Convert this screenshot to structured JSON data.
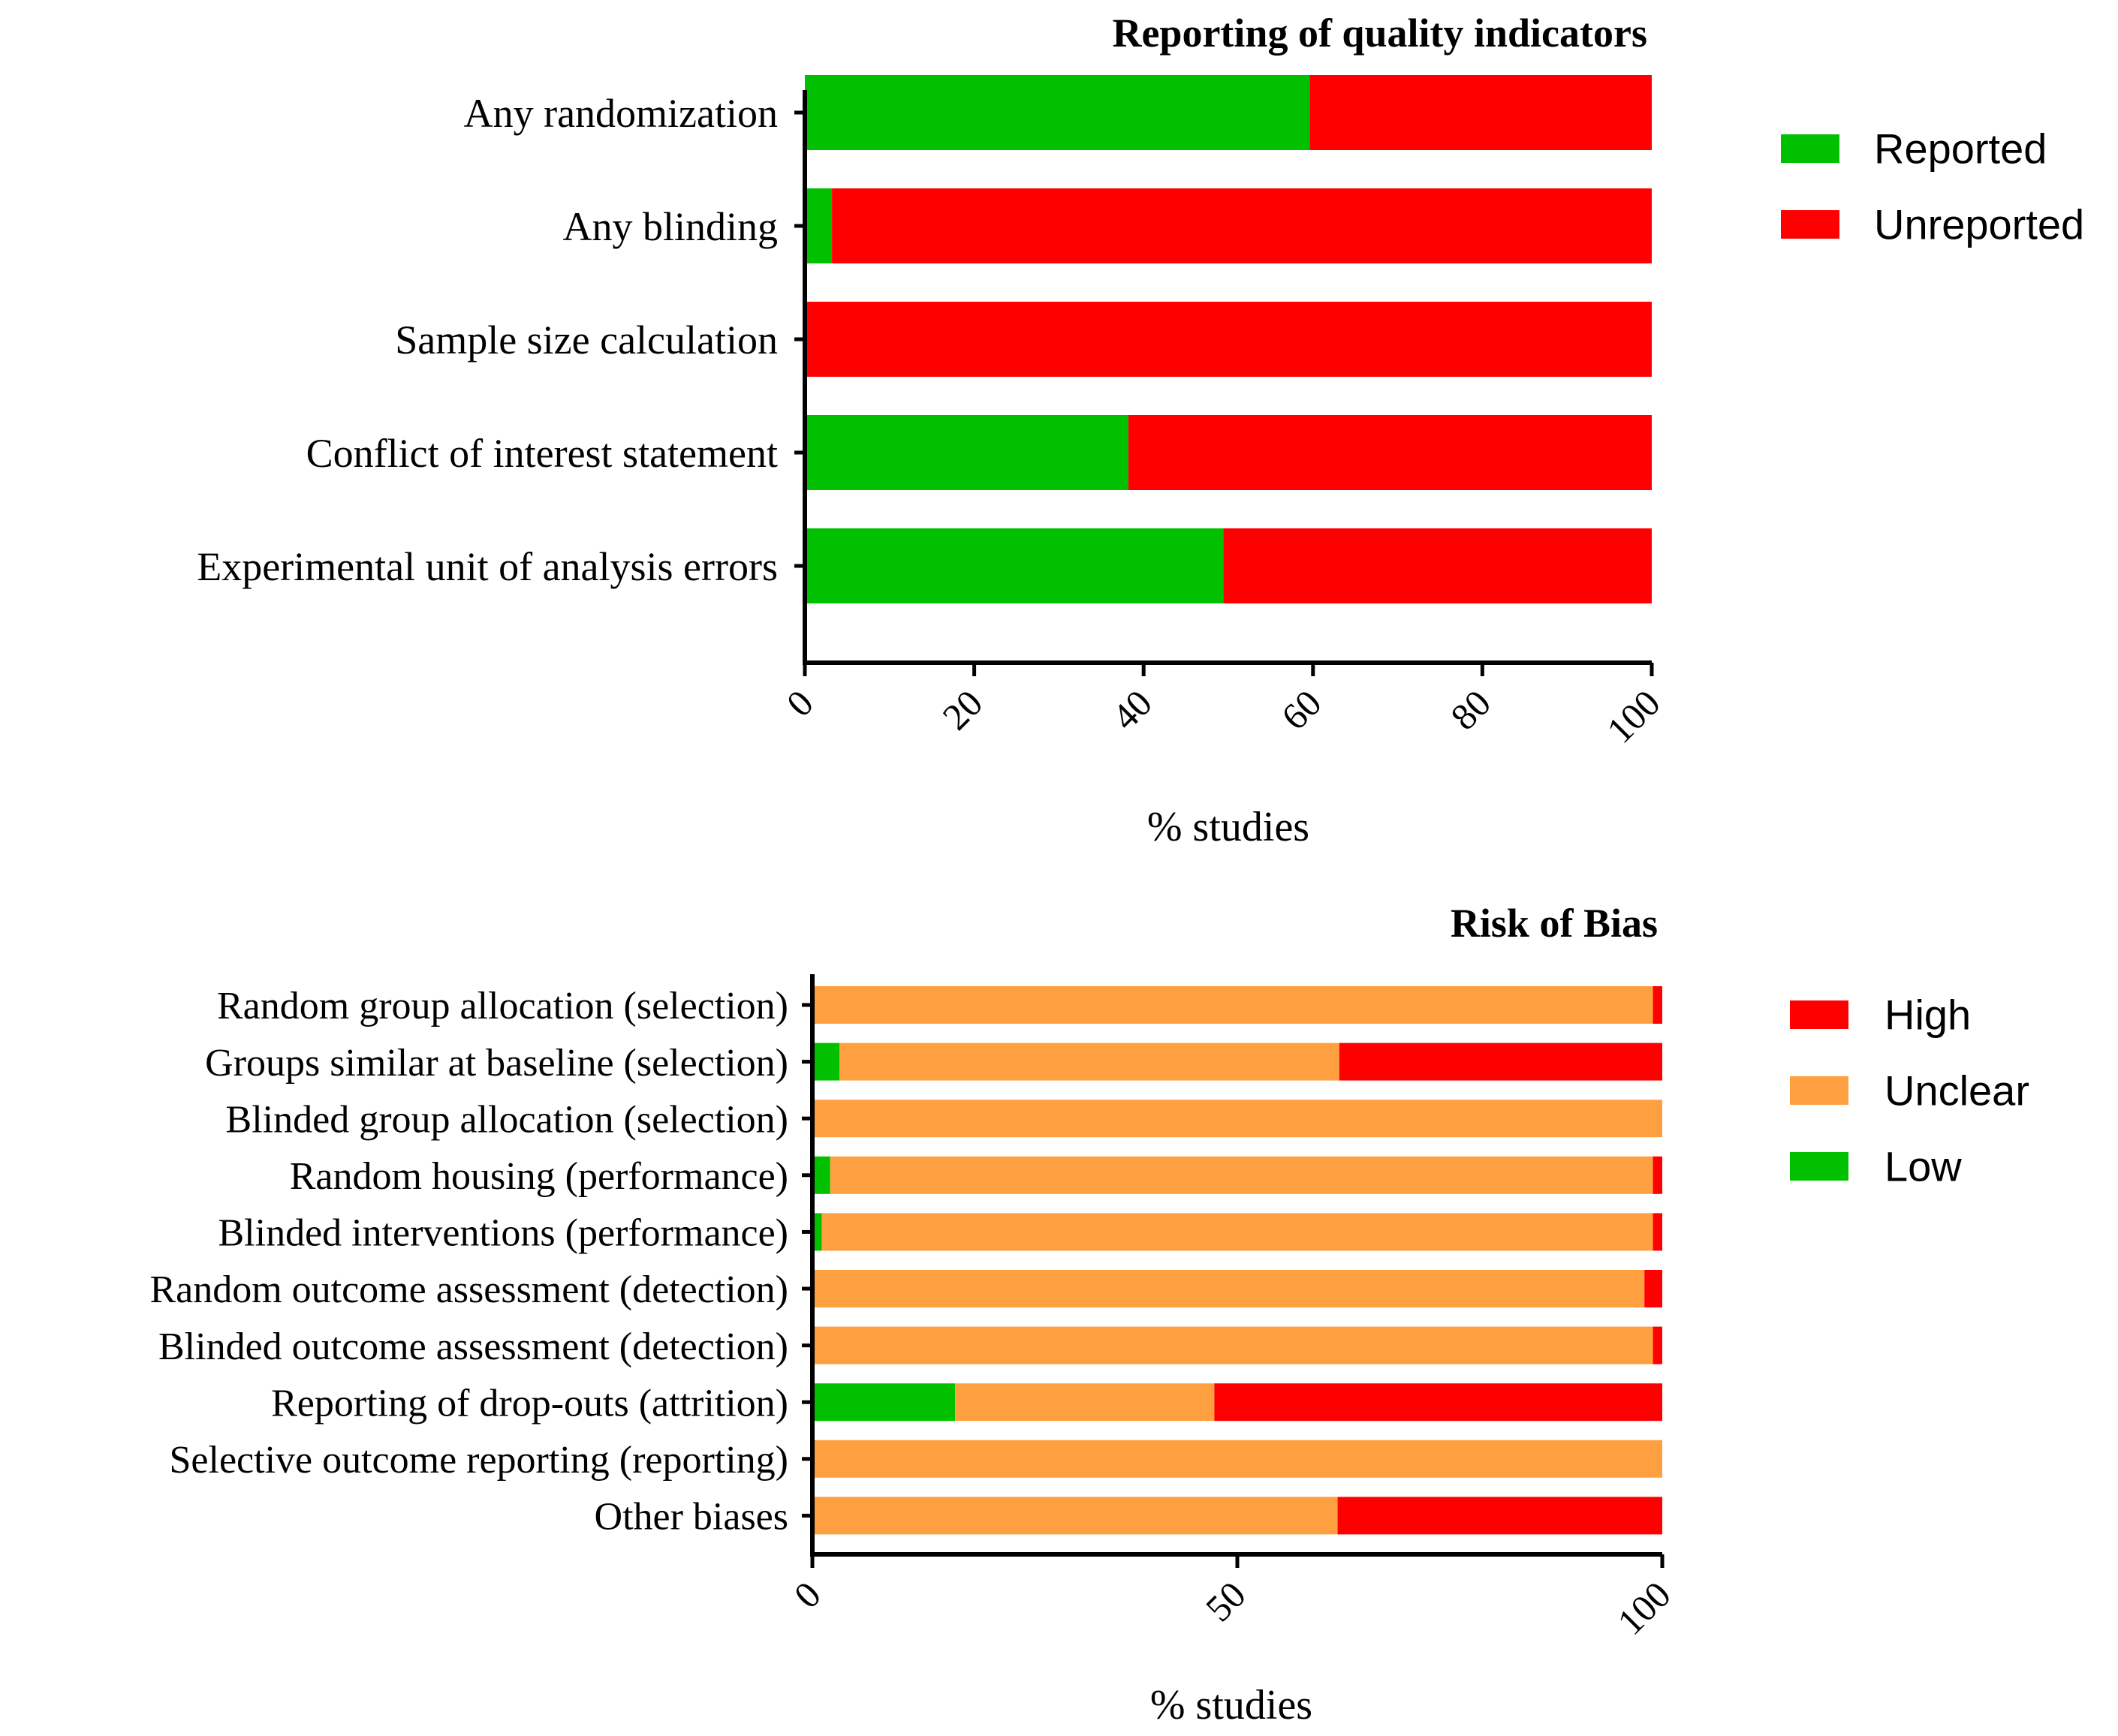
{
  "chart_data": [
    {
      "type": "bar",
      "orientation": "horizontal",
      "stacked": true,
      "title": "Reporting of quality indicators",
      "xlabel": "% studies",
      "ylabel": "",
      "xlim": [
        0,
        100
      ],
      "xticks": [
        "0",
        "20",
        "40",
        "60",
        "80",
        "100"
      ],
      "categories": [
        "Any randomization",
        "Any blinding",
        "Sample size calculation",
        "Conflict of interest statement",
        "Experimental unit of analysis errors"
      ],
      "series": [
        {
          "name": "Reported",
          "color": "#00c000",
          "values": [
            59.6,
            3.2,
            0,
            38.2,
            49.4
          ]
        },
        {
          "name": "Unreported",
          "color": "#ff0000",
          "values": [
            40.4,
            96.8,
            100,
            61.8,
            50.6
          ]
        }
      ],
      "legend": [
        "Reported",
        "Unreported"
      ],
      "legend_position": "top-right",
      "grid": false
    },
    {
      "type": "bar",
      "orientation": "horizontal",
      "stacked": true,
      "title": "Risk of Bias",
      "xlabel": "% studies",
      "ylabel": "",
      "xlim": [
        0,
        100
      ],
      "xticks": [
        "0",
        "50",
        "100"
      ],
      "categories": [
        "Random group allocation (selection)",
        "Groups similar at baseline (selection)",
        "Blinded group allocation (selection)",
        "Random housing (performance)",
        "Blinded interventions (performance)",
        "Random outcome assessment (detection)",
        "Blinded outcome assessment (detection)",
        "Reporting of drop-outs (attrition)",
        "Selective outcome reporting (reporting)",
        "Other biases"
      ],
      "series": [
        {
          "name": "Low",
          "color": "#00c000",
          "values": [
            0,
            3.2,
            0,
            2.1,
            1.1,
            0,
            0,
            16.8,
            0,
            0
          ]
        },
        {
          "name": "Unclear",
          "color": "#ffa040",
          "values": [
            98.9,
            58.8,
            100,
            96.8,
            97.8,
            97.9,
            98.9,
            30.5,
            100,
            61.8
          ]
        },
        {
          "name": "High",
          "color": "#ff0000",
          "values": [
            1.1,
            38.0,
            0,
            1.1,
            1.1,
            2.1,
            1.1,
            52.7,
            0,
            38.2
          ]
        }
      ],
      "legend": [
        "High",
        "Unclear",
        "Low"
      ],
      "legend_position": "top-right",
      "grid": false
    }
  ]
}
